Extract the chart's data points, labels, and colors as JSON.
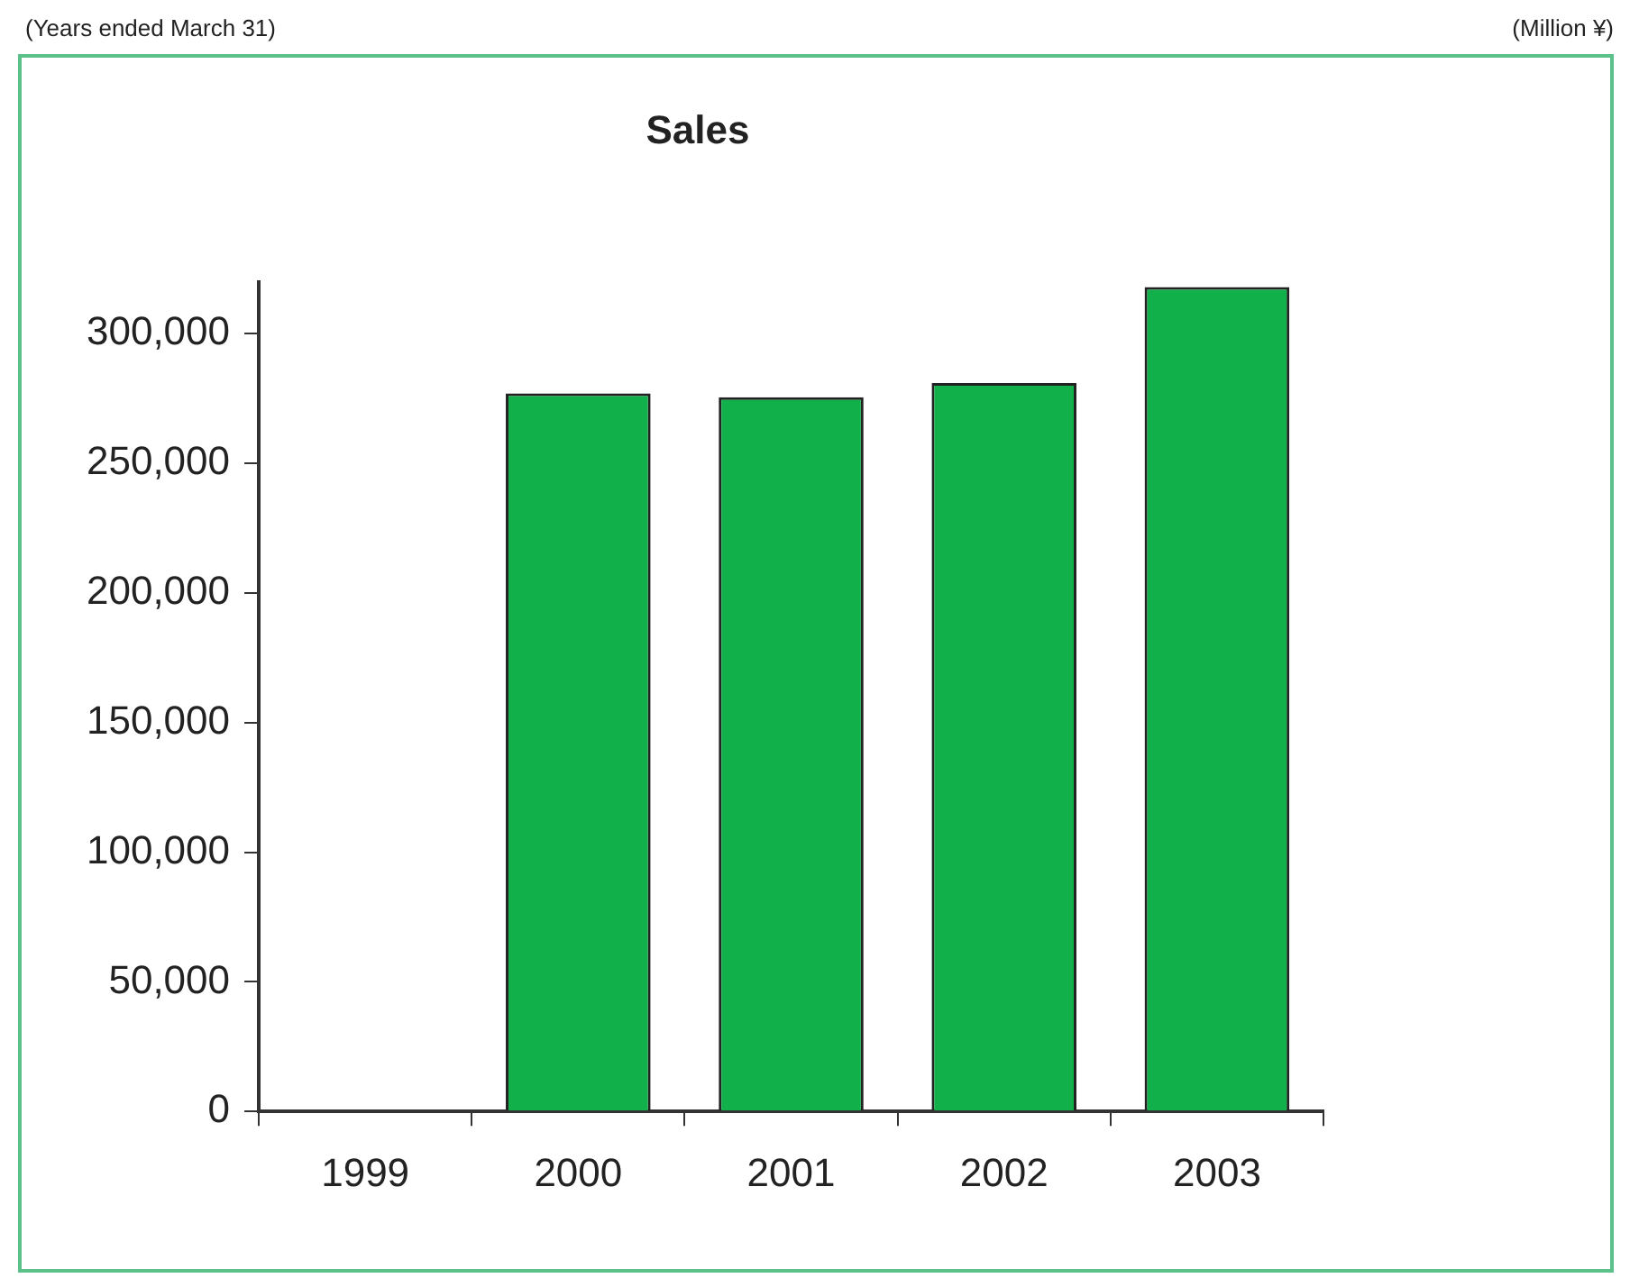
{
  "chart_data": {
    "type": "bar",
    "title": "Sales",
    "categories": [
      "1999",
      "2000",
      "2001",
      "2002",
      "2003"
    ],
    "values": [
      null,
      277000,
      275500,
      281000,
      318000
    ],
    "color": "#12b04a",
    "ylim": [
      0,
      320000
    ],
    "yticks": [
      0,
      {
        "value": 50000,
        "label": "50,000"
      },
      {
        "value": 100000,
        "label": "100,000"
      },
      {
        "value": 150000,
        "label": "150,000"
      },
      {
        "value": 200000,
        "label": "200,000"
      },
      {
        "value": 250000,
        "label": "250,000"
      },
      {
        "value": 300000,
        "label": "300,000"
      }
    ],
    "grid": false,
    "legend": false,
    "annotations": [
      "(Years ended March 31)",
      "(Million ¥)"
    ]
  }
}
